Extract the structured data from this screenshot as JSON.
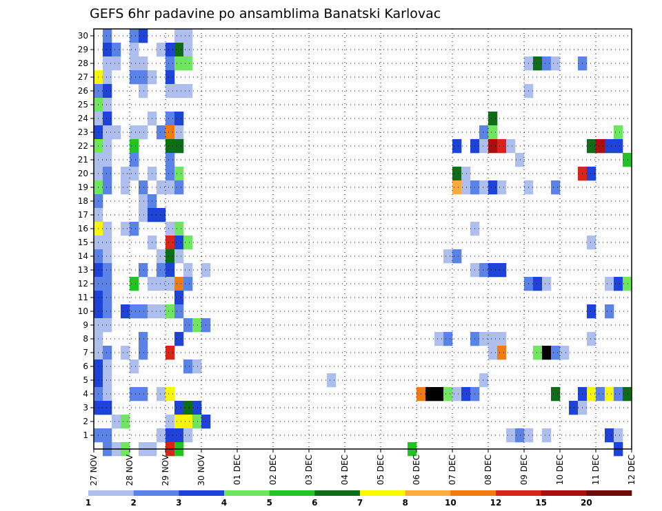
{
  "chart_data": {
    "type": "heatmap",
    "title": "GEFS 6hr padavine po ansamblima Banatski Karlovac",
    "x_ticks": [
      "27 NOV",
      "28 NOV",
      "29 NOV",
      "30 NOV",
      "01 DEC",
      "02 DEC",
      "03 DEC",
      "04 DEC",
      "05 DEC",
      "06 DEC",
      "07 DEC",
      "08 DEC",
      "09 DEC",
      "10 DEC",
      "11 DEC",
      "12 DEC"
    ],
    "time_steps_per_day": 4,
    "y_ticks": [
      1,
      2,
      3,
      4,
      5,
      6,
      7,
      8,
      9,
      10,
      11,
      12,
      13,
      14,
      15,
      16,
      17,
      18,
      19,
      20,
      21,
      22,
      23,
      24,
      25,
      26,
      27,
      28,
      29,
      30
    ],
    "ylim": [
      0,
      30
    ],
    "grid": true,
    "colorbar": {
      "labels": [
        "1",
        "2",
        "3",
        "4",
        "5",
        "6",
        "7",
        "8",
        "10",
        "12",
        "15",
        "20"
      ],
      "colors": [
        "#aebfee",
        "#5b82e6",
        "#1e43d8",
        "#6ee65e",
        "#22c424",
        "#0e6e18",
        "#f8f800",
        "#fbac3c",
        "#f27b0e",
        "#d8241a",
        "#a80f0e",
        "#6c0808"
      ]
    },
    "cells": [
      {
        "member": 30,
        "cols": [
          [
            1,
            2
          ],
          [
            4,
            2
          ],
          [
            5,
            3
          ],
          [
            9,
            1
          ],
          [
            10,
            1
          ]
        ]
      },
      {
        "member": 29,
        "cols": [
          [
            1,
            3
          ],
          [
            2,
            2
          ],
          [
            4,
            1
          ],
          [
            7,
            1
          ],
          [
            8,
            3
          ],
          [
            9,
            6
          ],
          [
            10,
            1
          ]
        ]
      },
      {
        "member": 28,
        "cols": [
          [
            1,
            1
          ],
          [
            2,
            1
          ],
          [
            4,
            1
          ],
          [
            5,
            1
          ],
          [
            8,
            2
          ],
          [
            9,
            4
          ],
          [
            10,
            4
          ],
          [
            48,
            1
          ],
          [
            49,
            6
          ],
          [
            50,
            2
          ],
          [
            51,
            1
          ],
          [
            54,
            2
          ]
        ]
      },
      {
        "member": 27,
        "cols": [
          [
            0,
            7
          ],
          [
            1,
            1
          ],
          [
            4,
            2
          ],
          [
            5,
            2
          ],
          [
            6,
            1
          ],
          [
            8,
            3
          ]
        ]
      },
      {
        "member": 26,
        "cols": [
          [
            0,
            2
          ],
          [
            1,
            3
          ],
          [
            5,
            1
          ],
          [
            8,
            1
          ],
          [
            9,
            1
          ],
          [
            10,
            1
          ],
          [
            48,
            1
          ]
        ]
      },
      {
        "member": 25,
        "cols": [
          [
            0,
            4
          ],
          [
            1,
            1
          ]
        ]
      },
      {
        "member": 24,
        "cols": [
          [
            0,
            1
          ],
          [
            1,
            3
          ],
          [
            6,
            1
          ],
          [
            8,
            2
          ],
          [
            9,
            3
          ],
          [
            44,
            6
          ]
        ]
      },
      {
        "member": 23,
        "cols": [
          [
            0,
            3
          ],
          [
            1,
            1
          ],
          [
            2,
            1
          ],
          [
            4,
            1
          ],
          [
            5,
            1
          ],
          [
            7,
            2
          ],
          [
            8,
            9
          ],
          [
            9,
            1
          ],
          [
            43,
            2
          ],
          [
            44,
            4
          ],
          [
            58,
            4
          ]
        ]
      },
      {
        "member": 22,
        "cols": [
          [
            0,
            4
          ],
          [
            1,
            1
          ],
          [
            4,
            5
          ],
          [
            8,
            6
          ],
          [
            9,
            6
          ],
          [
            40,
            3
          ],
          [
            42,
            3
          ],
          [
            43,
            1
          ],
          [
            44,
            11
          ],
          [
            45,
            10
          ],
          [
            46,
            1
          ],
          [
            55,
            6
          ],
          [
            56,
            11
          ],
          [
            57,
            3
          ],
          [
            58,
            3
          ]
        ]
      },
      {
        "member": 21,
        "cols": [
          [
            0,
            1
          ],
          [
            1,
            1
          ],
          [
            4,
            2
          ],
          [
            8,
            2
          ],
          [
            47,
            1
          ],
          [
            59,
            5
          ]
        ]
      },
      {
        "member": 20,
        "cols": [
          [
            0,
            1
          ],
          [
            1,
            2
          ],
          [
            3,
            1
          ],
          [
            4,
            1
          ],
          [
            6,
            1
          ],
          [
            8,
            2
          ],
          [
            9,
            4
          ],
          [
            40,
            6
          ],
          [
            41,
            1
          ],
          [
            54,
            10
          ],
          [
            55,
            3
          ]
        ]
      },
      {
        "member": 19,
        "cols": [
          [
            0,
            4
          ],
          [
            1,
            2
          ],
          [
            3,
            1
          ],
          [
            5,
            2
          ],
          [
            7,
            1
          ],
          [
            8,
            1
          ],
          [
            9,
            2
          ],
          [
            40,
            8
          ],
          [
            41,
            1
          ],
          [
            42,
            2
          ],
          [
            43,
            1
          ],
          [
            44,
            3
          ],
          [
            45,
            1
          ],
          [
            48,
            1
          ],
          [
            51,
            2
          ]
        ]
      },
      {
        "member": 18,
        "cols": [
          [
            0,
            2
          ],
          [
            5,
            1
          ],
          [
            6,
            2
          ]
        ]
      },
      {
        "member": 17,
        "cols": [
          [
            0,
            1
          ],
          [
            5,
            1
          ],
          [
            6,
            3
          ],
          [
            7,
            3
          ]
        ]
      },
      {
        "member": 16,
        "cols": [
          [
            0,
            7
          ],
          [
            1,
            1
          ],
          [
            3,
            1
          ],
          [
            4,
            2
          ],
          [
            8,
            1
          ],
          [
            9,
            4
          ],
          [
            42,
            1
          ]
        ]
      },
      {
        "member": 15,
        "cols": [
          [
            0,
            1
          ],
          [
            1,
            1
          ],
          [
            6,
            1
          ],
          [
            8,
            10
          ],
          [
            9,
            3
          ],
          [
            10,
            4
          ],
          [
            55,
            1
          ]
        ]
      },
      {
        "member": 14,
        "cols": [
          [
            0,
            2
          ],
          [
            1,
            1
          ],
          [
            7,
            1
          ],
          [
            8,
            6
          ],
          [
            9,
            1
          ],
          [
            39,
            1
          ],
          [
            40,
            2
          ]
        ]
      },
      {
        "member": 13,
        "cols": [
          [
            0,
            3
          ],
          [
            1,
            2
          ],
          [
            5,
            2
          ],
          [
            7,
            2
          ],
          [
            8,
            3
          ],
          [
            10,
            1
          ],
          [
            12,
            1
          ],
          [
            42,
            1
          ],
          [
            43,
            2
          ],
          [
            44,
            3
          ],
          [
            45,
            3
          ]
        ]
      },
      {
        "member": 12,
        "cols": [
          [
            0,
            2
          ],
          [
            1,
            2
          ],
          [
            4,
            5
          ],
          [
            6,
            1
          ],
          [
            7,
            1
          ],
          [
            8,
            1
          ],
          [
            9,
            9
          ],
          [
            10,
            2
          ],
          [
            48,
            2
          ],
          [
            49,
            3
          ],
          [
            50,
            1
          ],
          [
            57,
            1
          ],
          [
            58,
            3
          ],
          [
            59,
            4
          ]
        ]
      },
      {
        "member": 11,
        "cols": [
          [
            0,
            3
          ],
          [
            1,
            2
          ],
          [
            9,
            3
          ]
        ]
      },
      {
        "member": 10,
        "cols": [
          [
            0,
            3
          ],
          [
            1,
            2
          ],
          [
            3,
            3
          ],
          [
            4,
            2
          ],
          [
            5,
            2
          ],
          [
            6,
            1
          ],
          [
            7,
            1
          ],
          [
            8,
            4
          ],
          [
            9,
            2
          ],
          [
            55,
            3
          ],
          [
            57,
            2
          ]
        ]
      },
      {
        "member": 9,
        "cols": [
          [
            0,
            1
          ],
          [
            1,
            1
          ],
          [
            10,
            2
          ],
          [
            11,
            4
          ],
          [
            12,
            2
          ]
        ]
      },
      {
        "member": 8,
        "cols": [
          [
            0,
            1
          ],
          [
            5,
            2
          ],
          [
            9,
            3
          ],
          [
            38,
            1
          ],
          [
            39,
            2
          ],
          [
            42,
            2
          ],
          [
            43,
            1
          ],
          [
            44,
            1
          ],
          [
            45,
            1
          ],
          [
            55,
            1
          ]
        ]
      },
      {
        "member": 7,
        "cols": [
          [
            0,
            1
          ],
          [
            1,
            2
          ],
          [
            3,
            1
          ],
          [
            5,
            2
          ],
          [
            8,
            10
          ],
          [
            44,
            1
          ],
          [
            45,
            9
          ],
          [
            49,
            4
          ],
          [
            50,
            13
          ],
          [
            51,
            2
          ],
          [
            52,
            1
          ]
        ]
      },
      {
        "member": 6,
        "cols": [
          [
            0,
            3
          ],
          [
            1,
            1
          ],
          [
            4,
            1
          ],
          [
            10,
            2
          ],
          [
            11,
            1
          ]
        ]
      },
      {
        "member": 5,
        "cols": [
          [
            0,
            3
          ],
          [
            1,
            1
          ],
          [
            26,
            1
          ],
          [
            43,
            1
          ]
        ]
      },
      {
        "member": 4,
        "cols": [
          [
            0,
            2
          ],
          [
            1,
            1
          ],
          [
            4,
            2
          ],
          [
            5,
            2
          ],
          [
            7,
            1
          ],
          [
            8,
            7
          ],
          [
            36,
            9
          ],
          [
            37,
            13
          ],
          [
            38,
            14
          ],
          [
            39,
            4
          ],
          [
            40,
            1
          ],
          [
            41,
            3
          ],
          [
            42,
            2
          ],
          [
            51,
            6
          ],
          [
            54,
            3
          ],
          [
            55,
            7
          ],
          [
            56,
            2
          ],
          [
            57,
            7
          ],
          [
            58,
            2
          ],
          [
            59,
            6
          ]
        ]
      },
      {
        "member": 3,
        "cols": [
          [
            0,
            3
          ],
          [
            1,
            3
          ],
          [
            9,
            3
          ],
          [
            10,
            6
          ],
          [
            11,
            3
          ],
          [
            53,
            3
          ],
          [
            54,
            1
          ]
        ]
      },
      {
        "member": 2,
        "cols": [
          [
            2,
            1
          ],
          [
            3,
            4
          ],
          [
            8,
            1
          ],
          [
            9,
            7
          ],
          [
            10,
            7
          ],
          [
            11,
            4
          ],
          [
            12,
            3
          ]
        ]
      },
      {
        "member": 1,
        "cols": [
          [
            0,
            2
          ],
          [
            1,
            2
          ],
          [
            7,
            1
          ],
          [
            8,
            3
          ],
          [
            9,
            3
          ],
          [
            10,
            1
          ],
          [
            46,
            1
          ],
          [
            47,
            2
          ],
          [
            48,
            1
          ],
          [
            50,
            1
          ],
          [
            57,
            3
          ],
          [
            58,
            1
          ]
        ]
      },
      {
        "member": 0,
        "cols": [
          [
            1,
            2
          ],
          [
            2,
            1
          ],
          [
            3,
            4
          ],
          [
            5,
            1
          ],
          [
            6,
            1
          ],
          [
            8,
            10
          ],
          [
            9,
            5
          ],
          [
            35,
            5
          ],
          [
            58,
            3
          ]
        ]
      }
    ]
  }
}
